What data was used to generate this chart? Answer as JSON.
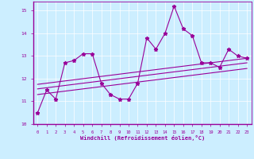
{
  "xlabel": "Windchill (Refroidissement éolien,°C)",
  "bg_color": "#cceeff",
  "line_color": "#990099",
  "grid_color": "#aaddcc",
  "xlim": [
    -0.5,
    23.5
  ],
  "ylim": [
    10,
    15.4
  ],
  "yticks": [
    10,
    11,
    12,
    13,
    14,
    15
  ],
  "xticks": [
    0,
    1,
    2,
    3,
    4,
    5,
    6,
    7,
    8,
    9,
    10,
    11,
    12,
    13,
    14,
    15,
    16,
    17,
    18,
    19,
    20,
    21,
    22,
    23
  ],
  "main_y": [
    10.5,
    11.5,
    11.1,
    12.7,
    12.8,
    13.1,
    13.1,
    11.8,
    11.3,
    11.1,
    11.1,
    11.8,
    13.8,
    13.3,
    14.0,
    15.2,
    14.2,
    13.9,
    12.7,
    12.7,
    12.5,
    13.3,
    13.0,
    12.9
  ],
  "trend1_y": [
    11.55,
    11.6,
    11.65,
    11.7,
    11.75,
    11.8,
    11.85,
    11.9,
    11.95,
    12.0,
    12.05,
    12.1,
    12.15,
    12.2,
    12.25,
    12.3,
    12.35,
    12.4,
    12.45,
    12.5,
    12.55,
    12.6,
    12.65,
    12.7
  ],
  "trend2_y": [
    11.75,
    11.8,
    11.85,
    11.9,
    11.95,
    12.0,
    12.05,
    12.1,
    12.15,
    12.2,
    12.25,
    12.3,
    12.35,
    12.4,
    12.45,
    12.5,
    12.55,
    12.6,
    12.65,
    12.7,
    12.75,
    12.8,
    12.85,
    12.9
  ],
  "trend3_y": [
    11.3,
    11.35,
    11.4,
    11.45,
    11.5,
    11.55,
    11.6,
    11.65,
    11.7,
    11.75,
    11.8,
    11.85,
    11.9,
    11.95,
    12.0,
    12.05,
    12.1,
    12.15,
    12.2,
    12.25,
    12.3,
    12.35,
    12.4,
    12.45
  ]
}
